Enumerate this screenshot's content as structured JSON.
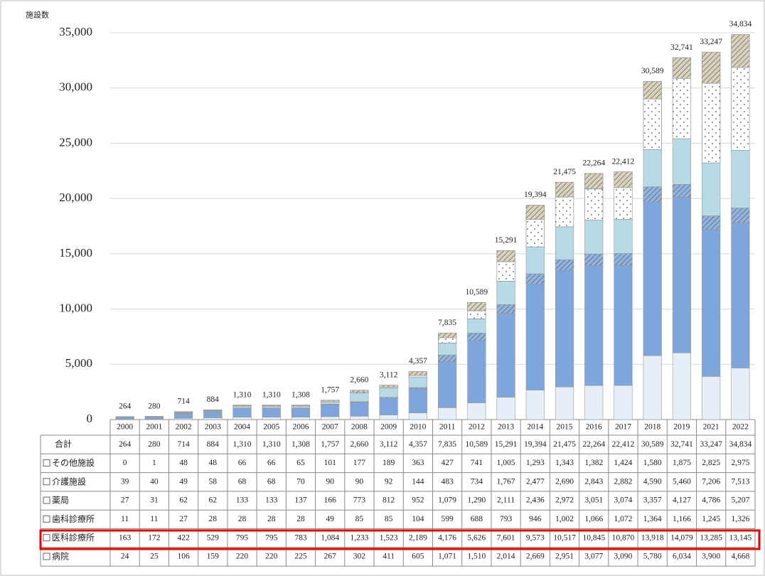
{
  "chart_data": {
    "type": "stacked_bar",
    "ylabel": "施設数",
    "categories": [
      "2000",
      "2001",
      "2002",
      "2003",
      "2004",
      "2005",
      "2006",
      "2007",
      "2008",
      "2009",
      "2010",
      "2011",
      "2012",
      "2013",
      "2014",
      "2015",
      "2016",
      "2017",
      "2018",
      "2019",
      "2021",
      "2022"
    ],
    "ylim": [
      0,
      35000
    ],
    "yticks": [
      0,
      {
        "value": 5000,
        "label": "5,000"
      },
      {
        "value": 10000,
        "label": "10,000"
      },
      {
        "value": 15000,
        "label": "15,000"
      },
      {
        "value": 20000,
        "label": "20,000"
      },
      {
        "value": 25000,
        "label": "25,000"
      },
      {
        "value": 30000,
        "label": "30,000"
      },
      {
        "value": 35000,
        "label": "35,000"
      }
    ],
    "grid": true,
    "totals_name": "合計",
    "totals": [
      264,
      280,
      714,
      884,
      1310,
      1310,
      1308,
      1757,
      2660,
      3112,
      4357,
      7835,
      10589,
      15291,
      19394,
      21475,
      22264,
      22412,
      30589,
      32741,
      33247,
      34834
    ],
    "total_labels": [
      "264",
      "280",
      "714",
      "884",
      "1,310",
      "1,310",
      "1,308",
      "1,757",
      "2,660",
      "3,112",
      "4,357",
      "7,835",
      "10,589",
      "15,291",
      "19,394",
      "21,475",
      "22,264",
      "22,412",
      "30,589",
      "32,741",
      "33,247",
      "34,834"
    ],
    "series": [
      {
        "name": "その他施設",
        "color": "#d9d2bd",
        "pattern": "hatch",
        "values": [
          0,
          1,
          48,
          48,
          66,
          66,
          65,
          101,
          177,
          189,
          363,
          427,
          741,
          1005,
          1293,
          1343,
          1382,
          1424,
          1580,
          1875,
          2825,
          2975
        ],
        "value_labels": [
          "0",
          "1",
          "48",
          "48",
          "66",
          "66",
          "65",
          "101",
          "177",
          "189",
          "363",
          "427",
          "741",
          "1,005",
          "1,293",
          "1,343",
          "1,382",
          "1,424",
          "1,580",
          "1,875",
          "2,825",
          "2,975"
        ]
      },
      {
        "name": "介護施設",
        "color": "#ffffff",
        "pattern": "dots",
        "values": [
          39,
          40,
          49,
          58,
          68,
          68,
          70,
          90,
          90,
          92,
          144,
          483,
          734,
          1767,
          2477,
          2690,
          2843,
          2882,
          4590,
          5460,
          7206,
          7513
        ],
        "value_labels": [
          "39",
          "40",
          "49",
          "58",
          "68",
          "68",
          "70",
          "90",
          "90",
          "92",
          "144",
          "483",
          "734",
          "1,767",
          "2,477",
          "2,690",
          "2,843",
          "2,882",
          "4,590",
          "5,460",
          "7,206",
          "7,513"
        ]
      },
      {
        "name": "薬局",
        "color": "#b7dbe6",
        "values": [
          27,
          31,
          62,
          62,
          133,
          133,
          137,
          166,
          773,
          812,
          952,
          1079,
          1290,
          2111,
          2436,
          2972,
          3051,
          3074,
          3357,
          4127,
          4786,
          5207
        ],
        "value_labels": [
          "27",
          "31",
          "62",
          "62",
          "133",
          "133",
          "137",
          "166",
          "773",
          "812",
          "952",
          "1,079",
          "1,290",
          "2,111",
          "2,436",
          "2,972",
          "3,051",
          "3,074",
          "3,357",
          "4,127",
          "4,786",
          "5,207"
        ]
      },
      {
        "name": "歯科診療所",
        "color": "#8fb4e0",
        "pattern": "hatch",
        "values": [
          11,
          11,
          27,
          28,
          28,
          28,
          28,
          49,
          85,
          85,
          104,
          599,
          688,
          793,
          946,
          1002,
          1066,
          1072,
          1364,
          1166,
          1245,
          1326
        ],
        "value_labels": [
          "11",
          "11",
          "27",
          "28",
          "28",
          "28",
          "28",
          "49",
          "85",
          "85",
          "104",
          "599",
          "688",
          "793",
          "946",
          "1,002",
          "1,066",
          "1,072",
          "1,364",
          "1,166",
          "1,245",
          "1,326"
        ]
      },
      {
        "name": "医科診療所",
        "color": "#7ea5dc",
        "values": [
          163,
          172,
          422,
          529,
          795,
          795,
          783,
          1084,
          1233,
          1523,
          2189,
          4176,
          5626,
          7601,
          9573,
          10517,
          10845,
          10870,
          13918,
          14079,
          13285,
          13145
        ],
        "value_labels": [
          "163",
          "172",
          "422",
          "529",
          "795",
          "795",
          "783",
          "1,084",
          "1,233",
          "1,523",
          "2,189",
          "4,176",
          "5,626",
          "7,601",
          "9,573",
          "10,517",
          "10,845",
          "10,870",
          "13,918",
          "14,079",
          "13,285",
          "13,145"
        ]
      },
      {
        "name": "病院",
        "color": "#e6eef8",
        "values": [
          24,
          25,
          106,
          159,
          220,
          220,
          225,
          267,
          302,
          411,
          605,
          1071,
          1510,
          2014,
          2669,
          2951,
          3077,
          3090,
          5780,
          6034,
          3900,
          4668
        ],
        "value_labels": [
          "24",
          "25",
          "106",
          "159",
          "220",
          "220",
          "225",
          "267",
          "302",
          "411",
          "605",
          "1,071",
          "1,510",
          "2,014",
          "2,669",
          "2,951",
          "3,077",
          "3,090",
          "5,780",
          "6,034",
          "3,900",
          "4,668"
        ]
      }
    ]
  }
}
